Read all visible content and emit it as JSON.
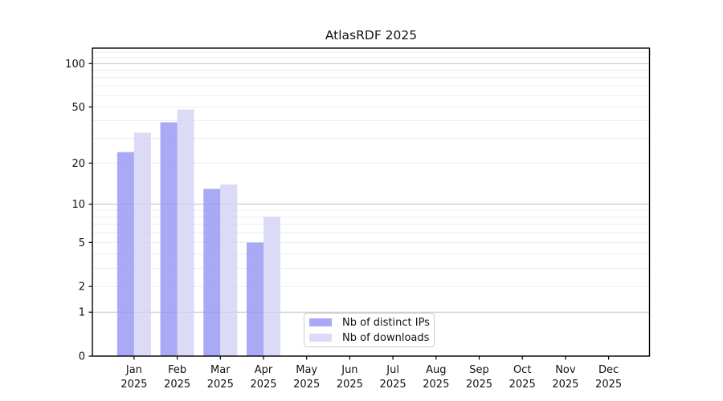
{
  "title": "AtlasRDF 2025",
  "chart_data": {
    "type": "bar",
    "title": "AtlasRDF 2025",
    "x": {
      "months": [
        "Jan",
        "Feb",
        "Mar",
        "Apr",
        "May",
        "Jun",
        "Jul",
        "Aug",
        "Sep",
        "Oct",
        "Nov",
        "Dec"
      ],
      "year": "2025"
    },
    "categories": [
      "Jan 2025",
      "Feb 2025",
      "Mar 2025",
      "Apr 2025",
      "May 2025",
      "Jun 2025",
      "Jul 2025",
      "Aug 2025",
      "Sep 2025",
      "Oct 2025",
      "Nov 2025",
      "Dec 2025"
    ],
    "series": [
      {
        "name": "Nb of distinct IPs",
        "color": "rgba(150,150,243,0.82)",
        "swatch": "#a9a9f5",
        "values": [
          24,
          39,
          13,
          5,
          null,
          null,
          null,
          null,
          null,
          null,
          null,
          null
        ]
      },
      {
        "name": "Nb of downloads",
        "color": "rgba(210,210,245,0.8)",
        "swatch": "#dbdbf7",
        "values": [
          33,
          48,
          14,
          8,
          null,
          null,
          null,
          null,
          null,
          null,
          null,
          null
        ]
      }
    ],
    "y_axis": {
      "scale": "symlog ln(1+v)",
      "tick_labels": [
        0,
        1,
        2,
        5,
        10,
        20,
        50,
        100
      ],
      "decade_gridlines": [
        1,
        10,
        100
      ],
      "minor_gridlines": [
        2,
        3,
        4,
        5,
        6,
        7,
        8,
        9,
        20,
        30,
        40,
        50,
        60,
        70,
        80,
        90,
        110,
        120
      ],
      "ymax": 126
    },
    "grid": true,
    "legend_position": "bottom-center"
  },
  "colors": {
    "decade_grid": "#c3c3c3",
    "minor_grid": "#ececec",
    "axis": "#000000",
    "legend_border": "#cccccc",
    "text": "#111111"
  }
}
